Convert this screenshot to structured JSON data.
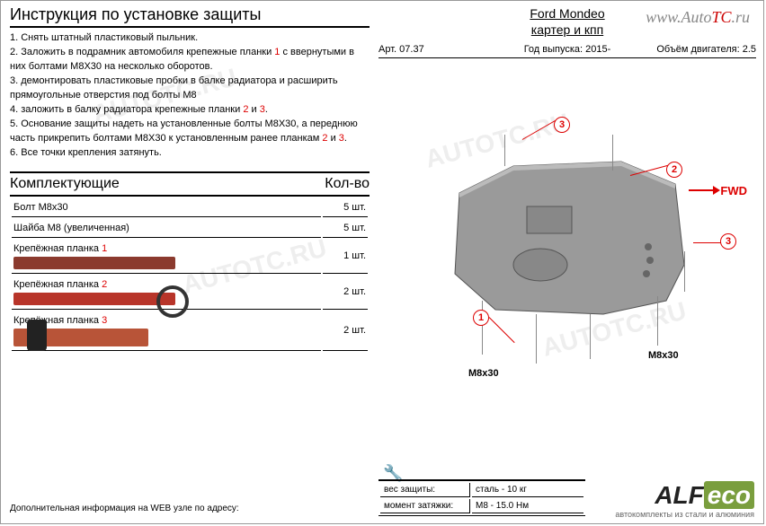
{
  "site_url_prefix": "www.Auto",
  "site_url_mid": "TC",
  "site_url_suffix": ".ru",
  "watermark": "AUTOTC.RU",
  "instructions": {
    "title": "Инструкция по установке защиты",
    "items": [
      "1. Снять штатный пластиковый пыльник.",
      "2. Заложить в подрамник автомобиля крепежные планки <span class='red-num'>1</span> с ввернутыми в них болтами М8Х30 на несколько оборотов.",
      "3. демонтировать пластиковые пробки в балке радиатора и расширить прямоугольные отверстия под болты М8",
      "4. заложить в балку радиатора крепежные планки <span class='red-num'>2</span> и <span class='red-num'>3</span>.",
      "5. Основание защиты надеть на установленные болты М8Х30, а переднюю часть прикрепить болтами М8Х30 к установленным ранее планкам <span class='red-num'>2</span> и <span class='red-num'>3</span>.",
      "6. Все точки крепления затянуть."
    ]
  },
  "components": {
    "header_left": "Комплектующие",
    "header_right": "Кол-во",
    "rows": [
      {
        "name": "Болт М8х30",
        "qty": "5 шт."
      },
      {
        "name": "Шайба М8 (увеличенная)",
        "qty": "5 шт."
      },
      {
        "name": "Крепёжная планка <span class='red-num'>1</span>",
        "qty": "1 шт.",
        "plank": "plank1"
      },
      {
        "name": "Крепёжная планка <span class='red-num'>2</span>",
        "qty": "2 шт.",
        "plank": "plank2"
      },
      {
        "name": "Крепёжная планка <span class='red-num'>3</span>",
        "qty": "2 шт.",
        "plank": "plank3"
      }
    ]
  },
  "footer_left": "Дополнительная информация на WEB узле по адресу:",
  "car": {
    "name": "Ford Mondeo",
    "subtitle": "картер и кпп"
  },
  "info": {
    "art_label": "Арт.",
    "art_value": "07.37",
    "year_label": "Год выпуска:",
    "year_value": "2015-",
    "engine_label": "Объём двигателя:",
    "engine_value": "2.5"
  },
  "diagram": {
    "fwd": "FWD",
    "bolt_label": "М8х30",
    "callouts": {
      "c1": "1",
      "c2": "2",
      "c3": "3"
    },
    "styling": {
      "shield_fill": "#9a9a9a",
      "shield_stroke": "#555",
      "callout_color": "#d00",
      "bolt_line_color": "#888"
    }
  },
  "specs": {
    "weight_label": "вес защиты:",
    "weight_value": "сталь - 10 кг",
    "torque_label": "момент затяжки:",
    "torque_value": "М8  - 15.0 Нм"
  },
  "logo": {
    "brand_a": "ALF",
    "brand_b": "eco",
    "tagline": "автокомплекты из стали и алюминия"
  }
}
